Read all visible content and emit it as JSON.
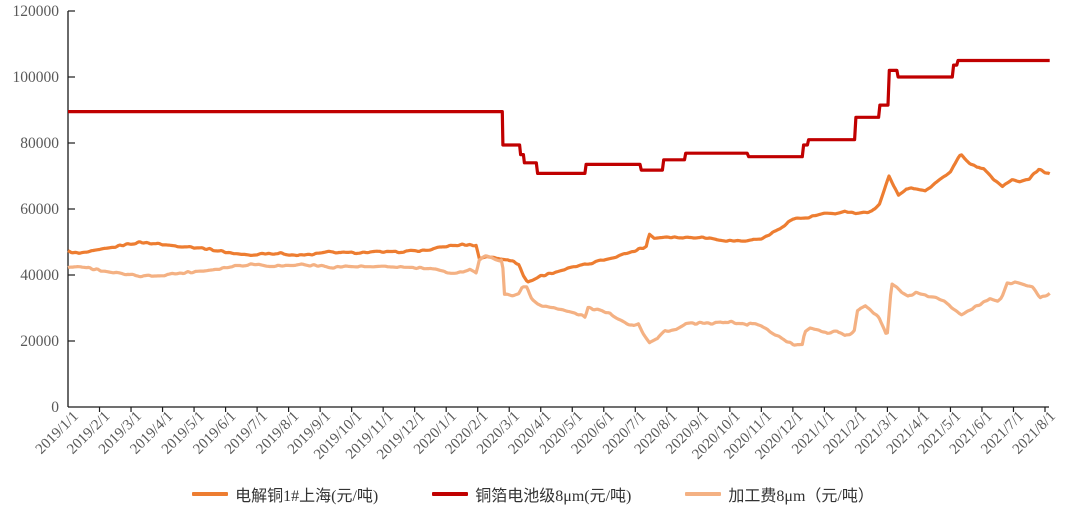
{
  "figure": {
    "background": "#FFFFFF",
    "axis_color": "#1a1a1a",
    "tick_label_color": "#595959",
    "legend_text_color": "#333333",
    "grid": "off",
    "legend_position": "bottom-center"
  },
  "chart_data": {
    "type": "line",
    "title": "",
    "xlabel": "",
    "ylabel": "",
    "x_axis": {
      "unit": "months_since_2019/1/1",
      "span_months": 31,
      "labels": [
        "2019/1/1",
        "2019/2/1",
        "2019/3/1",
        "2019/4/1",
        "2019/5/1",
        "2019/6/1",
        "2019/7/1",
        "2019/8/1",
        "2019/9/1",
        "2019/10/1",
        "2019/11/1",
        "2019/12/1",
        "2020/1/1",
        "2020/2/1",
        "2020/3/1",
        "2020/4/1",
        "2020/5/1",
        "2020/6/1",
        "2020/7/1",
        "2020/8/1",
        "2020/9/1",
        "2020/10/1",
        "2020/11/1",
        "2020/12/1",
        "2021/1/1",
        "2021/2/1",
        "2021/3/1",
        "2021/4/1",
        "2021/5/1",
        "2021/6/1",
        "2021/7/1",
        "2021/8/1"
      ]
    },
    "y_axis": {
      "min": 0,
      "max": 120000,
      "tick_interval": 20000,
      "tick_labels": [
        "0",
        "20000",
        "40000",
        "60000",
        "80000",
        "100000",
        "120000"
      ]
    },
    "series": [
      {
        "name": "电解铜1#上海(元/吨)",
        "slug": "electrolytic-copper-1-shanghai",
        "color": "#ED7D31",
        "style": "noisy",
        "wiggle": 260,
        "points": [
          [
            0,
            47200
          ],
          [
            0.35,
            46500
          ],
          [
            0.8,
            47200
          ],
          [
            1.3,
            48100
          ],
          [
            1.8,
            49200
          ],
          [
            2.3,
            49900
          ],
          [
            2.8,
            49500
          ],
          [
            3.3,
            48900
          ],
          [
            3.8,
            48600
          ],
          [
            4.3,
            48100
          ],
          [
            4.8,
            47300
          ],
          [
            5.3,
            46500
          ],
          [
            5.8,
            45900
          ],
          [
            6.2,
            46600
          ],
          [
            6.8,
            46500
          ],
          [
            7.3,
            45900
          ],
          [
            7.8,
            46300
          ],
          [
            8.3,
            47000
          ],
          [
            8.8,
            46700
          ],
          [
            9.3,
            46800
          ],
          [
            9.8,
            47000
          ],
          [
            10.3,
            46900
          ],
          [
            10.8,
            47200
          ],
          [
            11.4,
            47500
          ],
          [
            12.0,
            48700
          ],
          [
            12.55,
            49200
          ],
          [
            12.97,
            49000
          ],
          [
            13.03,
            44900
          ],
          [
            13.3,
            45700
          ],
          [
            13.6,
            45000
          ],
          [
            13.95,
            44800
          ],
          [
            14.3,
            43300
          ],
          [
            14.45,
            39800
          ],
          [
            14.58,
            37800
          ],
          [
            15.0,
            39700
          ],
          [
            15.5,
            41000
          ],
          [
            16.0,
            42300
          ],
          [
            16.5,
            43300
          ],
          [
            17.0,
            44600
          ],
          [
            17.5,
            45900
          ],
          [
            18.0,
            47400
          ],
          [
            18.35,
            48700
          ],
          [
            18.44,
            52400
          ],
          [
            18.6,
            51200
          ],
          [
            19.0,
            51600
          ],
          [
            19.5,
            51300
          ],
          [
            20.0,
            51500
          ],
          [
            20.5,
            51000
          ],
          [
            20.9,
            50400
          ],
          [
            21.4,
            50300
          ],
          [
            21.7,
            50600
          ],
          [
            22.1,
            51300
          ],
          [
            22.5,
            53600
          ],
          [
            23.0,
            57000
          ],
          [
            23.5,
            57400
          ],
          [
            24.0,
            58700
          ],
          [
            24.35,
            58300
          ],
          [
            24.65,
            59400
          ],
          [
            25.0,
            58600
          ],
          [
            25.5,
            59200
          ],
          [
            25.75,
            61500
          ],
          [
            26.05,
            69800
          ],
          [
            26.2,
            66800
          ],
          [
            26.35,
            64300
          ],
          [
            26.6,
            66200
          ],
          [
            26.9,
            66300
          ],
          [
            27.2,
            65500
          ],
          [
            27.6,
            68300
          ],
          [
            28.0,
            71500
          ],
          [
            28.33,
            76600
          ],
          [
            28.6,
            74000
          ],
          [
            28.85,
            72500
          ],
          [
            29.05,
            72300
          ],
          [
            29.35,
            69300
          ],
          [
            29.65,
            66900
          ],
          [
            29.95,
            68800
          ],
          [
            30.2,
            68200
          ],
          [
            30.5,
            69200
          ],
          [
            30.8,
            72000
          ],
          [
            31.0,
            71200
          ],
          [
            31.15,
            70500
          ]
        ]
      },
      {
        "name": "铜箔电池级8μm(元/吨)",
        "slug": "copper-foil-battery-grade-8um",
        "color": "#C00000",
        "style": "step",
        "wiggle": 0,
        "points": [
          [
            0,
            89500
          ],
          [
            13.78,
            89500
          ],
          [
            13.8,
            79400
          ],
          [
            14.33,
            79400
          ],
          [
            14.36,
            76500
          ],
          [
            14.45,
            76500
          ],
          [
            14.48,
            74000
          ],
          [
            14.86,
            74000
          ],
          [
            14.9,
            70800
          ],
          [
            16.4,
            70800
          ],
          [
            16.44,
            73500
          ],
          [
            18.15,
            73500
          ],
          [
            18.19,
            71800
          ],
          [
            18.86,
            71800
          ],
          [
            18.9,
            74900
          ],
          [
            19.56,
            74900
          ],
          [
            19.6,
            76900
          ],
          [
            21.55,
            76900
          ],
          [
            21.6,
            75850
          ],
          [
            23.3,
            75850
          ],
          [
            23.34,
            79400
          ],
          [
            23.46,
            79400
          ],
          [
            23.5,
            81000
          ],
          [
            24.96,
            81000
          ],
          [
            25.0,
            87800
          ],
          [
            25.72,
            87800
          ],
          [
            25.76,
            91500
          ],
          [
            26.02,
            91500
          ],
          [
            26.06,
            102000
          ],
          [
            26.3,
            102000
          ],
          [
            26.34,
            100000
          ],
          [
            28.06,
            100000
          ],
          [
            28.1,
            103600
          ],
          [
            28.2,
            103600
          ],
          [
            28.24,
            105000
          ],
          [
            31.15,
            105000
          ]
        ]
      },
      {
        "name": "加工费8μm（元/吨）",
        "slug": "processing-fee-8um",
        "color": "#F4B183",
        "style": "noisy",
        "wiggle": 300,
        "points": [
          [
            0,
            42300
          ],
          [
            0.4,
            42600
          ],
          [
            0.9,
            41700
          ],
          [
            1.4,
            40800
          ],
          [
            1.9,
            40000
          ],
          [
            2.4,
            39600
          ],
          [
            2.9,
            39900
          ],
          [
            3.4,
            40400
          ],
          [
            3.9,
            40900
          ],
          [
            4.4,
            41400
          ],
          [
            4.9,
            42100
          ],
          [
            5.4,
            42900
          ],
          [
            5.9,
            43300
          ],
          [
            6.4,
            42800
          ],
          [
            6.9,
            42800
          ],
          [
            7.4,
            43200
          ],
          [
            7.9,
            42800
          ],
          [
            8.4,
            42400
          ],
          [
            8.9,
            42600
          ],
          [
            9.4,
            42500
          ],
          [
            9.9,
            42400
          ],
          [
            10.4,
            42500
          ],
          [
            10.9,
            42200
          ],
          [
            11.5,
            41900
          ],
          [
            12.0,
            40800
          ],
          [
            12.4,
            40700
          ],
          [
            12.75,
            41800
          ],
          [
            12.97,
            40500
          ],
          [
            13.03,
            44600
          ],
          [
            13.25,
            45600
          ],
          [
            13.5,
            45100
          ],
          [
            13.7,
            44500
          ],
          [
            13.79,
            44700
          ],
          [
            13.83,
            34100
          ],
          [
            14.1,
            33800
          ],
          [
            14.3,
            34600
          ],
          [
            14.42,
            36300
          ],
          [
            14.56,
            36200
          ],
          [
            14.72,
            32700
          ],
          [
            14.92,
            31100
          ],
          [
            15.3,
            30300
          ],
          [
            15.7,
            29300
          ],
          [
            16.1,
            28400
          ],
          [
            16.41,
            27300
          ],
          [
            16.5,
            30100
          ],
          [
            16.9,
            29200
          ],
          [
            17.3,
            27800
          ],
          [
            17.7,
            25400
          ],
          [
            17.95,
            24800
          ],
          [
            18.1,
            25400
          ],
          [
            18.23,
            22700
          ],
          [
            18.45,
            19600
          ],
          [
            18.7,
            20700
          ],
          [
            18.93,
            23100
          ],
          [
            19.3,
            23400
          ],
          [
            19.6,
            25100
          ],
          [
            20.0,
            25400
          ],
          [
            20.45,
            25200
          ],
          [
            20.85,
            25900
          ],
          [
            21.3,
            25400
          ],
          [
            21.56,
            24800
          ],
          [
            21.63,
            25600
          ],
          [
            22.0,
            24500
          ],
          [
            22.4,
            22200
          ],
          [
            22.75,
            20300
          ],
          [
            23.0,
            18900
          ],
          [
            23.31,
            18700
          ],
          [
            23.37,
            22600
          ],
          [
            23.55,
            24100
          ],
          [
            23.85,
            23300
          ],
          [
            24.1,
            22400
          ],
          [
            24.4,
            23200
          ],
          [
            24.65,
            21600
          ],
          [
            24.9,
            22400
          ],
          [
            24.97,
            23200
          ],
          [
            25.03,
            29300
          ],
          [
            25.3,
            30400
          ],
          [
            25.55,
            28500
          ],
          [
            25.75,
            26800
          ],
          [
            25.9,
            23800
          ],
          [
            25.99,
            21700
          ],
          [
            26.03,
            26000
          ],
          [
            26.09,
            33000
          ],
          [
            26.13,
            37500
          ],
          [
            26.3,
            36300
          ],
          [
            26.45,
            34600
          ],
          [
            26.65,
            33600
          ],
          [
            26.9,
            34600
          ],
          [
            27.15,
            33800
          ],
          [
            27.45,
            33400
          ],
          [
            27.8,
            31900
          ],
          [
            28.1,
            29800
          ],
          [
            28.35,
            28200
          ],
          [
            28.65,
            29700
          ],
          [
            28.95,
            31000
          ],
          [
            29.25,
            32900
          ],
          [
            29.5,
            32200
          ],
          [
            29.62,
            33200
          ],
          [
            29.8,
            37300
          ],
          [
            30.05,
            37800
          ],
          [
            30.35,
            37000
          ],
          [
            30.6,
            36200
          ],
          [
            30.85,
            33200
          ],
          [
            31.0,
            33600
          ],
          [
            31.15,
            34200
          ]
        ]
      }
    ],
    "legend": {
      "entries": [
        "电解铜1#上海(元/吨)",
        "铜箔电池级8μm(元/吨)",
        "加工费8μm（元/吨）"
      ]
    }
  }
}
